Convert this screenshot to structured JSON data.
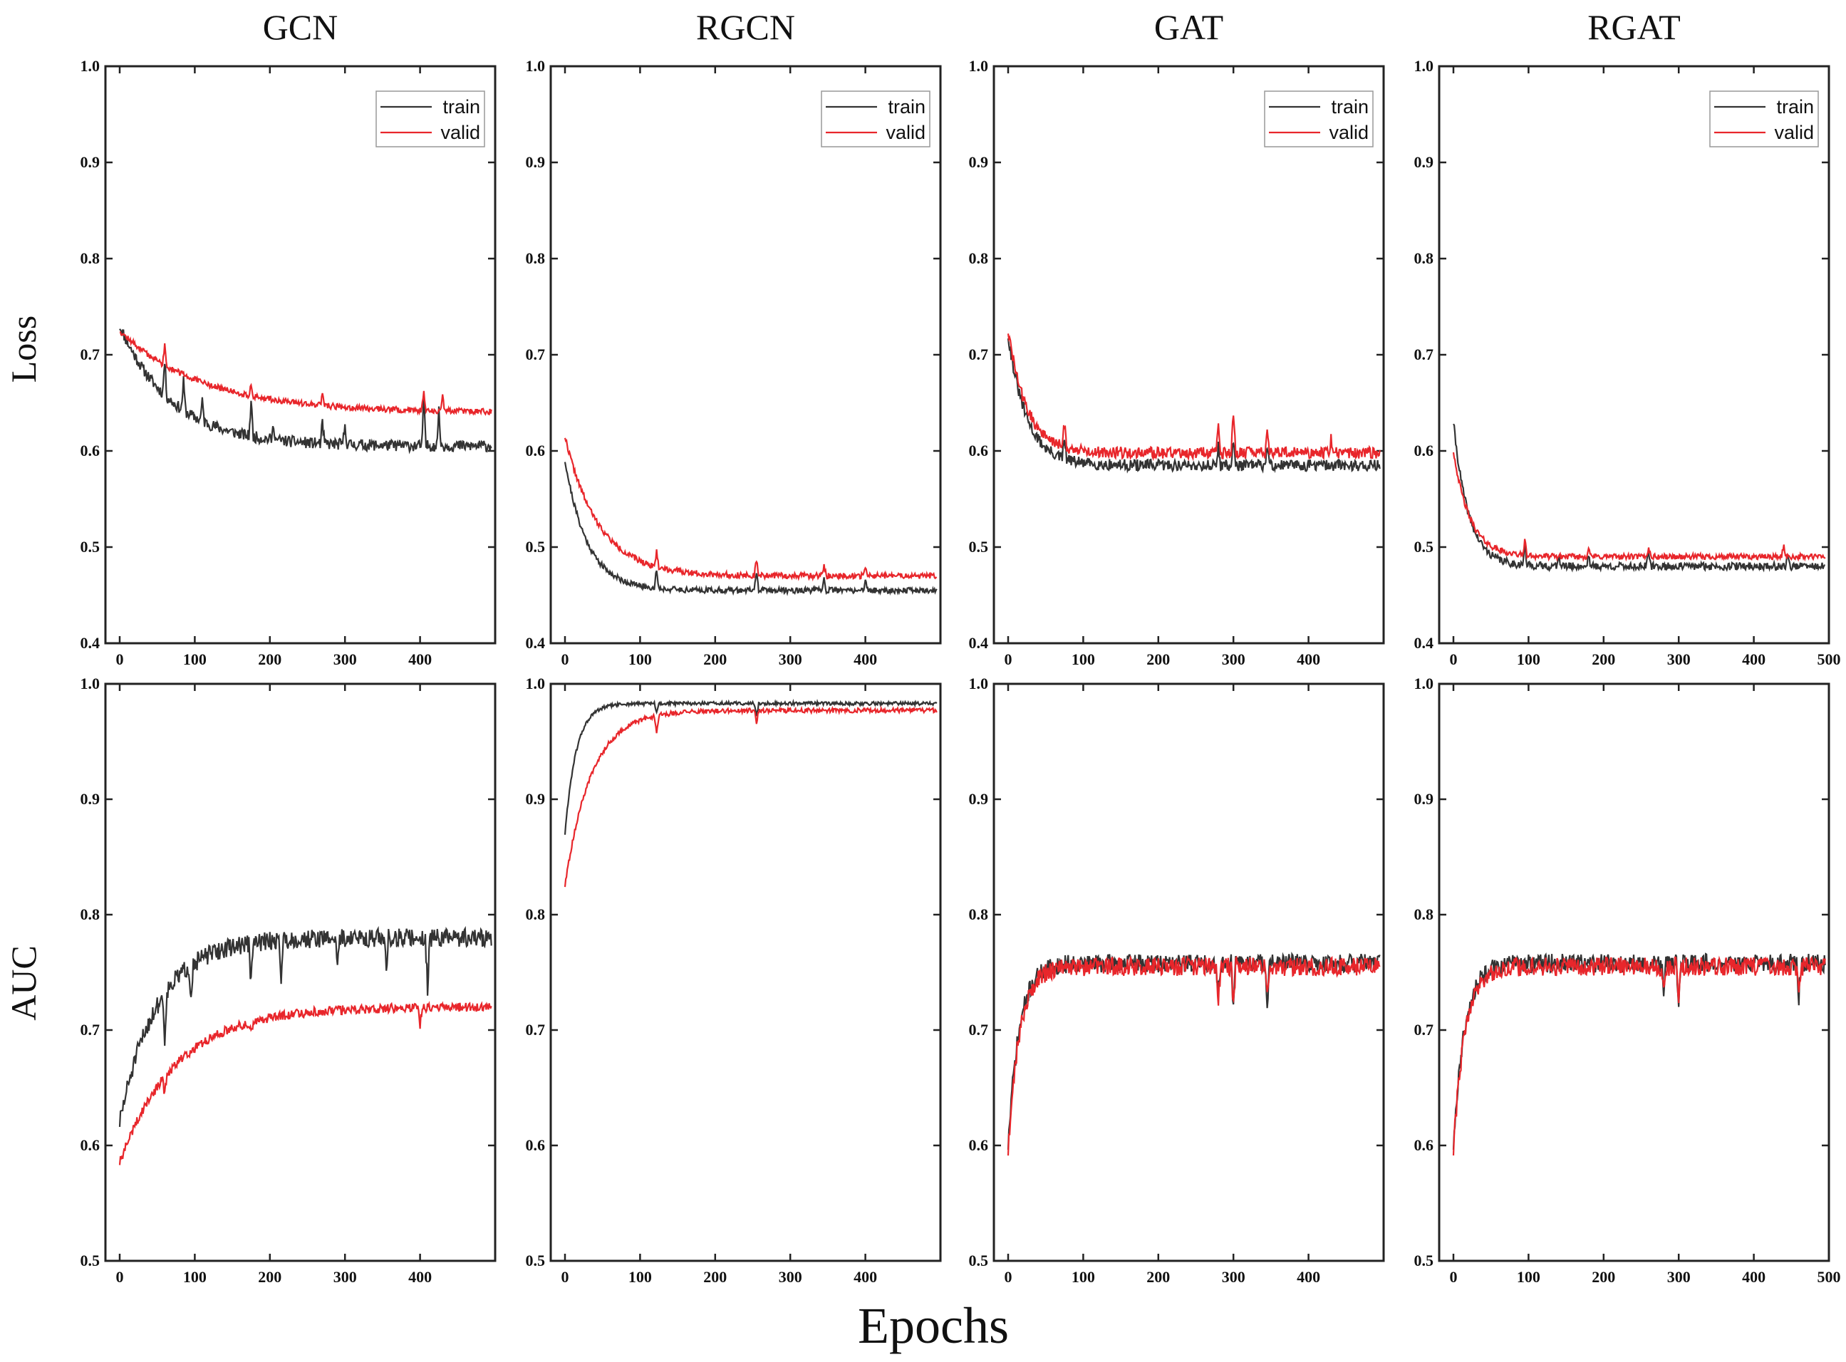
{
  "figure": {
    "x_title": "Epochs",
    "row_labels": [
      "Loss",
      "AUC"
    ],
    "col_titles": [
      "GCN",
      "RGCN",
      "GAT",
      "RGAT"
    ],
    "colors": {
      "train": "#333333",
      "valid": "#e8262b"
    }
  },
  "chart_data": [
    {
      "type": "line",
      "row": "Loss",
      "model": "GCN",
      "xlim": [
        0,
        500
      ],
      "ylim": [
        0.4,
        1.0
      ],
      "xticks": [
        "0",
        "100",
        "200",
        "300",
        "400"
      ],
      "yticks": [
        "0.4",
        "0.5",
        "0.6",
        "0.7",
        "0.8",
        "0.9",
        "1.0"
      ],
      "legend": {
        "entries": [
          "train",
          "valid"
        ],
        "position": "top-right"
      },
      "series": [
        {
          "name": "train",
          "shape": "loss",
          "start": 0.73,
          "end": 0.605,
          "tau": 70,
          "noise": 0.006,
          "spikes": [
            [
              60,
              0.035
            ],
            [
              85,
              0.03
            ],
            [
              110,
              0.02
            ],
            [
              175,
              0.035
            ],
            [
              205,
              0.015
            ],
            [
              270,
              0.02
            ],
            [
              300,
              0.02
            ],
            [
              405,
              0.045
            ],
            [
              425,
              0.035
            ]
          ],
          "seed": 11
        },
        {
          "name": "valid",
          "shape": "loss",
          "start": 0.725,
          "end": 0.64,
          "tau": 110,
          "noise": 0.003,
          "spikes": [
            [
              60,
              0.02
            ],
            [
              175,
              0.01
            ],
            [
              270,
              0.012
            ],
            [
              405,
              0.02
            ],
            [
              430,
              0.015
            ]
          ],
          "seed": 12
        }
      ]
    },
    {
      "type": "line",
      "row": "Loss",
      "model": "RGCN",
      "xlim": [
        0,
        500
      ],
      "ylim": [
        0.4,
        1.0
      ],
      "xticks": [
        "0",
        "100",
        "200",
        "300",
        "400"
      ],
      "yticks": [
        "0.4",
        "0.5",
        "0.6",
        "0.7",
        "0.8",
        "0.9",
        "1.0"
      ],
      "legend": {
        "entries": [
          "train",
          "valid"
        ],
        "position": "top-right"
      },
      "series": [
        {
          "name": "train",
          "shape": "loss",
          "start": 0.59,
          "end": 0.455,
          "tau": 30,
          "noise": 0.003,
          "spikes": [
            [
              122,
              0.02
            ],
            [
              255,
              0.02
            ],
            [
              345,
              0.012
            ],
            [
              400,
              0.01
            ]
          ],
          "seed": 21
        },
        {
          "name": "valid",
          "shape": "loss",
          "start": 0.615,
          "end": 0.47,
          "tau": 45,
          "noise": 0.003,
          "spikes": [
            [
              122,
              0.015
            ],
            [
              255,
              0.015
            ],
            [
              345,
              0.012
            ],
            [
              400,
              0.01
            ]
          ],
          "seed": 22
        }
      ]
    },
    {
      "type": "line",
      "row": "Loss",
      "model": "GAT",
      "xlim": [
        0,
        500
      ],
      "ylim": [
        0.4,
        1.0
      ],
      "xticks": [
        "0",
        "100",
        "200",
        "300",
        "400"
      ],
      "yticks": [
        "0.4",
        "0.5",
        "0.6",
        "0.7",
        "0.8",
        "0.9",
        "1.0"
      ],
      "legend": {
        "entries": [
          "train",
          "valid"
        ],
        "position": "top-right"
      },
      "series": [
        {
          "name": "train",
          "shape": "loss",
          "start": 0.72,
          "end": 0.585,
          "tau": 25,
          "noise": 0.006,
          "spikes": [
            [
              75,
              0.02
            ],
            [
              280,
              0.02
            ],
            [
              300,
              0.025
            ],
            [
              345,
              0.02
            ]
          ],
          "seed": 31
        },
        {
          "name": "valid",
          "shape": "loss",
          "start": 0.725,
          "end": 0.598,
          "tau": 25,
          "noise": 0.006,
          "spikes": [
            [
              75,
              0.025
            ],
            [
              280,
              0.03
            ],
            [
              300,
              0.04
            ],
            [
              345,
              0.03
            ],
            [
              430,
              0.015
            ]
          ],
          "seed": 32
        }
      ]
    },
    {
      "type": "line",
      "row": "Loss",
      "model": "RGAT",
      "xlim": [
        0,
        500
      ],
      "ylim": [
        0.4,
        1.0
      ],
      "xticks": [
        "0",
        "100",
        "200",
        "300",
        "400",
        "500"
      ],
      "yticks": [
        "0.4",
        "0.5",
        "0.6",
        "0.7",
        "0.8",
        "0.9",
        "1.0"
      ],
      "legend": {
        "entries": [
          "train",
          "valid"
        ],
        "position": "top-right"
      },
      "series": [
        {
          "name": "train",
          "shape": "loss",
          "start": 0.63,
          "end": 0.48,
          "tau": 20,
          "noise": 0.004,
          "spikes": [
            [
              95,
              0.02
            ],
            [
              140,
              0.012
            ],
            [
              180,
              0.012
            ],
            [
              260,
              0.015
            ],
            [
              445,
              0.012
            ]
          ],
          "seed": 41
        },
        {
          "name": "valid",
          "shape": "loss",
          "start": 0.6,
          "end": 0.49,
          "tau": 22,
          "noise": 0.003,
          "spikes": [
            [
              95,
              0.015
            ],
            [
              180,
              0.01
            ],
            [
              260,
              0.01
            ],
            [
              440,
              0.012
            ]
          ],
          "seed": 42
        }
      ]
    },
    {
      "type": "line",
      "row": "AUC",
      "model": "GCN",
      "xlim": [
        0,
        500
      ],
      "ylim": [
        0.5,
        1.0
      ],
      "xticks": [
        "0",
        "100",
        "200",
        "300",
        "400"
      ],
      "yticks": [
        "0.5",
        "0.6",
        "0.7",
        "0.8",
        "0.9",
        "1.0"
      ],
      "series": [
        {
          "name": "train",
          "shape": "auc",
          "start": 0.62,
          "end": 0.78,
          "tau": 50,
          "noise": 0.008,
          "spikes": [
            [
              60,
              -0.04
            ],
            [
              95,
              -0.025
            ],
            [
              175,
              -0.035
            ],
            [
              215,
              -0.03
            ],
            [
              290,
              -0.02
            ],
            [
              355,
              -0.025
            ],
            [
              410,
              -0.045
            ]
          ],
          "seed": 51
        },
        {
          "name": "valid",
          "shape": "auc",
          "start": 0.585,
          "end": 0.72,
          "tau": 75,
          "noise": 0.004,
          "spikes": [
            [
              60,
              -0.015
            ],
            [
              175,
              -0.01
            ],
            [
              400,
              -0.015
            ]
          ],
          "seed": 52
        }
      ]
    },
    {
      "type": "line",
      "row": "AUC",
      "model": "RGCN",
      "xlim": [
        0,
        500
      ],
      "ylim": [
        0.5,
        1.0
      ],
      "xticks": [
        "0",
        "100",
        "200",
        "300",
        "400"
      ],
      "yticks": [
        "0.5",
        "0.6",
        "0.7",
        "0.8",
        "0.9",
        "1.0"
      ],
      "series": [
        {
          "name": "train",
          "shape": "auc",
          "start": 0.87,
          "end": 0.983,
          "tau": 15,
          "noise": 0.0015,
          "spikes": [
            [
              122,
              -0.008
            ],
            [
              255,
              -0.012
            ]
          ],
          "seed": 61
        },
        {
          "name": "valid",
          "shape": "auc",
          "start": 0.825,
          "end": 0.977,
          "tau": 35,
          "noise": 0.002,
          "spikes": [
            [
              122,
              -0.015
            ],
            [
              255,
              -0.01
            ]
          ],
          "seed": 62
        }
      ]
    },
    {
      "type": "line",
      "row": "AUC",
      "model": "GAT",
      "xlim": [
        0,
        500
      ],
      "ylim": [
        0.5,
        1.0
      ],
      "xticks": [
        "0",
        "100",
        "200",
        "300",
        "400"
      ],
      "yticks": [
        "0.5",
        "0.6",
        "0.7",
        "0.8",
        "0.9",
        "1.0"
      ],
      "series": [
        {
          "name": "train",
          "shape": "auc",
          "start": 0.6,
          "end": 0.758,
          "tau": 15,
          "noise": 0.008,
          "spikes": [
            [
              280,
              -0.03
            ],
            [
              300,
              -0.04
            ],
            [
              345,
              -0.035
            ]
          ],
          "seed": 71
        },
        {
          "name": "valid",
          "shape": "auc",
          "start": 0.595,
          "end": 0.755,
          "tau": 15,
          "noise": 0.008,
          "spikes": [
            [
              280,
              -0.03
            ],
            [
              300,
              -0.035
            ],
            [
              345,
              -0.03
            ]
          ],
          "seed": 72
        }
      ]
    },
    {
      "type": "line",
      "row": "AUC",
      "model": "RGAT",
      "xlim": [
        0,
        500
      ],
      "ylim": [
        0.5,
        1.0
      ],
      "xticks": [
        "0",
        "100",
        "200",
        "300",
        "400",
        "500"
      ],
      "yticks": [
        "0.5",
        "0.6",
        "0.7",
        "0.8",
        "0.9",
        "1.0"
      ],
      "series": [
        {
          "name": "train",
          "shape": "auc",
          "start": 0.6,
          "end": 0.758,
          "tau": 15,
          "noise": 0.008,
          "spikes": [
            [
              280,
              -0.025
            ],
            [
              300,
              -0.04
            ],
            [
              460,
              -0.03
            ]
          ],
          "seed": 81
        },
        {
          "name": "valid",
          "shape": "auc",
          "start": 0.595,
          "end": 0.755,
          "tau": 15,
          "noise": 0.008,
          "spikes": [
            [
              280,
              -0.025
            ],
            [
              300,
              -0.035
            ],
            [
              460,
              -0.025
            ]
          ],
          "seed": 82
        }
      ]
    }
  ]
}
